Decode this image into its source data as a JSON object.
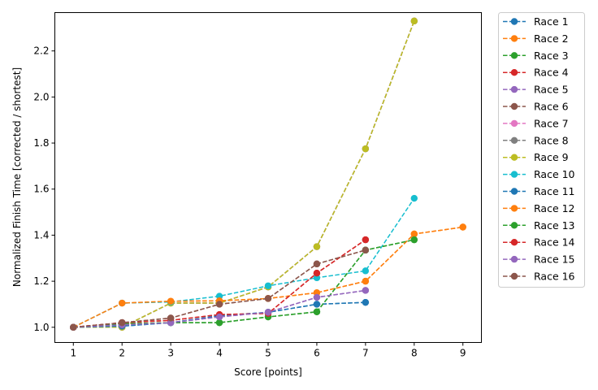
{
  "chart_data": {
    "type": "line",
    "xlabel": "Score [points]",
    "ylabel": "Normalized Finish Time [corrected / shortest]",
    "xlim": [
      0.62,
      9.38
    ],
    "ylim": [
      0.934,
      2.3665
    ],
    "xticks": [
      1,
      2,
      3,
      4,
      5,
      6,
      7,
      8,
      9
    ],
    "yticks": [
      1.0,
      1.2,
      1.4,
      1.6,
      1.8,
      2.0,
      2.2
    ],
    "ytick_labels": [
      "1.0",
      "1.2",
      "1.4",
      "1.6",
      "1.8",
      "2.0",
      "2.2"
    ],
    "grid": false,
    "legend_position": "outside-right",
    "line_style": "dashed",
    "marker": "circle",
    "series": [
      {
        "name": "Race 1",
        "color": "#1f77b4",
        "x": [
          1,
          2,
          3,
          4,
          5,
          6,
          7
        ],
        "y": [
          1.0,
          1.005,
          1.02,
          1.05,
          1.065,
          1.1,
          1.108
        ]
      },
      {
        "name": "Race 2",
        "color": "#ff7f0e",
        "x": [
          1,
          2,
          3,
          4,
          5,
          6,
          7,
          8,
          9
        ],
        "y": [
          1.0,
          1.105,
          1.113,
          1.115,
          1.125,
          1.15,
          1.2,
          1.405,
          1.435
        ]
      },
      {
        "name": "Race 3",
        "color": "#2ca02c",
        "x": [
          1,
          2,
          3,
          4,
          5,
          6,
          7,
          8
        ],
        "y": [
          1.0,
          1.015,
          1.02,
          1.02,
          1.045,
          1.067,
          1.335,
          1.38
        ]
      },
      {
        "name": "Race 4",
        "color": "#d62728",
        "x": [
          1,
          2,
          3,
          4,
          5,
          6,
          7
        ],
        "y": [
          1.0,
          1.02,
          1.03,
          1.055,
          1.06,
          1.235,
          1.38
        ]
      },
      {
        "name": "Race 5",
        "color": "#9467bd",
        "x": [
          1,
          2,
          3,
          4,
          5,
          6,
          7
        ],
        "y": [
          1.0,
          1.01,
          1.02,
          1.045,
          1.065,
          1.13,
          1.16
        ]
      },
      {
        "name": "Race 6",
        "color": "#8c564b",
        "x": [
          1,
          2,
          3,
          4,
          5,
          6,
          7
        ],
        "y": [
          1.0,
          1.02,
          1.04,
          1.1,
          1.125,
          1.275,
          1.335
        ]
      },
      {
        "name": "Race 7",
        "color": "#e377c2",
        "x": [
          1,
          2,
          3,
          4,
          5,
          6,
          7,
          8
        ],
        "y": [
          1.0,
          1.0,
          1.105,
          1.105,
          1.175,
          1.35,
          1.775,
          2.33
        ]
      },
      {
        "name": "Race 8",
        "color": "#7f7f7f",
        "x": [
          1,
          2,
          3,
          4,
          5,
          6,
          7,
          8
        ],
        "y": [
          1.0,
          1.0,
          1.105,
          1.105,
          1.175,
          1.35,
          1.775,
          2.33
        ]
      },
      {
        "name": "Race 9",
        "color": "#bcbd22",
        "x": [
          1,
          2,
          3,
          4,
          5,
          6,
          7,
          8
        ],
        "y": [
          1.0,
          1.0,
          1.105,
          1.105,
          1.175,
          1.35,
          1.775,
          2.33
        ]
      },
      {
        "name": "Race 10",
        "color": "#17becf",
        "x": [
          1,
          2,
          3,
          4,
          5,
          6,
          7,
          8
        ],
        "y": [
          1.0,
          1.105,
          1.11,
          1.135,
          1.18,
          1.215,
          1.245,
          1.56
        ]
      },
      {
        "name": "Race 11",
        "color": "#1f77b4",
        "x": [
          1,
          2,
          3,
          4,
          5,
          6,
          7
        ],
        "y": [
          1.0,
          1.005,
          1.02,
          1.05,
          1.065,
          1.1,
          1.108
        ]
      },
      {
        "name": "Race 12",
        "color": "#ff7f0e",
        "x": [
          1,
          2,
          3,
          4,
          5,
          6,
          7,
          8,
          9
        ],
        "y": [
          1.0,
          1.105,
          1.113,
          1.115,
          1.125,
          1.15,
          1.2,
          1.405,
          1.435
        ]
      },
      {
        "name": "Race 13",
        "color": "#2ca02c",
        "x": [
          1,
          2,
          3,
          4,
          5,
          6,
          7,
          8
        ],
        "y": [
          1.0,
          1.015,
          1.02,
          1.02,
          1.045,
          1.067,
          1.335,
          1.38
        ]
      },
      {
        "name": "Race 14",
        "color": "#d62728",
        "x": [
          1,
          2,
          3,
          4,
          5,
          6,
          7
        ],
        "y": [
          1.0,
          1.02,
          1.03,
          1.055,
          1.06,
          1.235,
          1.38
        ]
      },
      {
        "name": "Race 15",
        "color": "#9467bd",
        "x": [
          1,
          2,
          3,
          4,
          5,
          6,
          7
        ],
        "y": [
          1.0,
          1.01,
          1.02,
          1.045,
          1.065,
          1.13,
          1.16
        ]
      },
      {
        "name": "Race 16",
        "color": "#8c564b",
        "x": [
          1,
          2,
          3,
          4,
          5,
          6,
          7
        ],
        "y": [
          1.0,
          1.02,
          1.04,
          1.1,
          1.125,
          1.275,
          1.335
        ]
      }
    ]
  }
}
